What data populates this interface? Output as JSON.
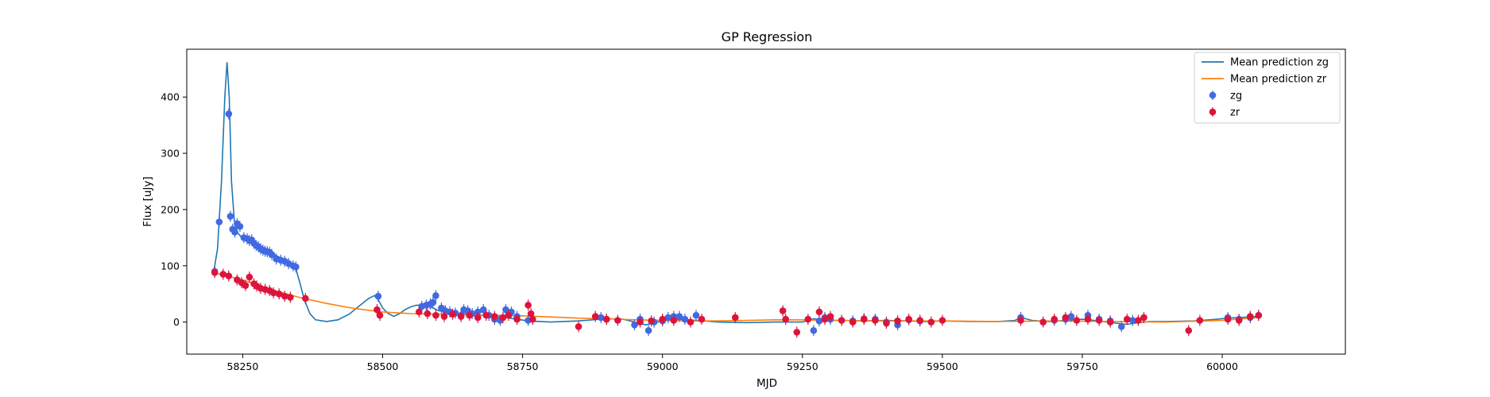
{
  "colors": {
    "mean_zg": "#1f77b4",
    "mean_zr": "#ff7f0e",
    "zg_points": "#4169e1",
    "zr_points": "#dc143c"
  },
  "chart_data": {
    "type": "scatter",
    "title": "GP Regression",
    "xlabel": "MJD",
    "ylabel": "Flux [uJy]",
    "xlim": [
      58150,
      60220
    ],
    "ylim": [
      -57,
      485
    ],
    "xticks": [
      58250,
      58500,
      58750,
      59000,
      59250,
      59500,
      59750,
      60000
    ],
    "yticks": [
      0,
      100,
      200,
      300,
      400
    ],
    "grid": false,
    "legend_position": "top-right",
    "legend": [
      "Mean prediction zg",
      "Mean prediction zr",
      "zg",
      "zr"
    ],
    "series": [
      {
        "name": "Mean prediction zg",
        "kind": "line",
        "x": [
          58198,
          58205,
          58212,
          58218,
          58222,
          58226,
          58230,
          58235,
          58240,
          58250,
          58270,
          58290,
          58310,
          58330,
          58345,
          58352,
          58360,
          58370,
          58380,
          58400,
          58420,
          58440,
          58460,
          58475,
          58485,
          58492,
          58500,
          58510,
          58520,
          58530,
          58540,
          58550,
          58560,
          58570,
          58580,
          58590,
          58600,
          58620,
          58650,
          58680,
          58700,
          58720,
          58740,
          58760,
          58800,
          58850,
          58900,
          58930,
          58950,
          58970,
          59000,
          59030,
          59060,
          59100,
          59150,
          59200,
          59250,
          59270,
          59290,
          59320,
          59360,
          59400,
          59440,
          59470,
          59500,
          59550,
          59600,
          59630,
          59640,
          59660,
          59690,
          59720,
          59750,
          59780,
          59810,
          59830,
          59850,
          59870,
          59900,
          59950,
          59990,
          60010,
          60030,
          60050,
          60065
        ],
        "y": [
          88,
          130,
          250,
          400,
          462,
          400,
          250,
          180,
          160,
          148,
          138,
          128,
          118,
          108,
          95,
          70,
          40,
          15,
          4,
          1,
          4,
          14,
          30,
          42,
          47,
          40,
          25,
          15,
          10,
          15,
          22,
          27,
          30,
          30,
          28,
          25,
          20,
          17,
          14,
          12,
          10,
          8,
          5,
          2,
          0,
          2,
          6,
          5,
          0,
          -5,
          2,
          5,
          3,
          0,
          -1,
          0,
          0,
          6,
          3,
          3,
          2,
          3,
          2,
          1,
          2,
          1,
          1,
          3,
          8,
          3,
          1,
          3,
          5,
          2,
          -2,
          -4,
          -1,
          1,
          1,
          2,
          5,
          7,
          8,
          9,
          10
        ]
      },
      {
        "name": "Mean prediction zr",
        "kind": "line",
        "x": [
          58198,
          58250,
          58300,
          58350,
          58400,
          58450,
          58500,
          58550,
          58600,
          58650,
          58700,
          58750,
          58800,
          58850,
          58900,
          58950,
          59000,
          59050,
          59100,
          59150,
          59200,
          59250,
          59300,
          59400,
          59500,
          59600,
          59700,
          59800,
          59900,
          60000,
          60065
        ],
        "y": [
          88,
          75,
          58,
          44,
          33,
          24,
          18,
          15,
          14,
          13,
          12,
          11,
          9,
          7,
          6,
          4,
          3,
          2,
          2,
          3,
          4,
          4,
          3,
          2,
          2,
          1,
          2,
          1,
          0,
          3,
          8
        ]
      },
      {
        "name": "zg",
        "kind": "points",
        "x": [
          58200,
          58208,
          58225,
          58228,
          58232,
          58236,
          58240,
          58245,
          58252,
          58258,
          58262,
          58266,
          58270,
          58274,
          58278,
          58282,
          58286,
          58290,
          58294,
          58298,
          58302,
          58310,
          58318,
          58325,
          58332,
          58340,
          58345,
          58492,
          58570,
          58578,
          58585,
          58590,
          58595,
          58605,
          58612,
          58620,
          58630,
          58640,
          58645,
          58652,
          58660,
          58670,
          58680,
          58690,
          58700,
          58710,
          58720,
          58730,
          58740,
          58760,
          58890,
          58900,
          58950,
          58960,
          58975,
          58985,
          59000,
          59010,
          59020,
          59030,
          59040,
          59060,
          59270,
          59280,
          59290,
          59300,
          59320,
          59340,
          59360,
          59380,
          59400,
          59420,
          59440,
          59460,
          59640,
          59700,
          59720,
          59730,
          59760,
          59780,
          59800,
          59820,
          59840,
          60010,
          60030,
          60050,
          60065
        ],
        "y": [
          90,
          178,
          370,
          188,
          165,
          160,
          175,
          170,
          150,
          148,
          145,
          146,
          140,
          136,
          134,
          130,
          128,
          126,
          125,
          124,
          120,
          112,
          110,
          108,
          104,
          100,
          98,
          46,
          28,
          30,
          32,
          35,
          47,
          25,
          20,
          18,
          16,
          12,
          22,
          20,
          15,
          18,
          22,
          12,
          5,
          3,
          22,
          18,
          10,
          3,
          8,
          5,
          -5,
          5,
          -15,
          0,
          2,
          8,
          10,
          10,
          5,
          12,
          -15,
          2,
          8,
          5,
          3,
          2,
          6,
          5,
          0,
          -5,
          4,
          2,
          8,
          3,
          5,
          10,
          12,
          5,
          2,
          -8,
          3,
          8,
          5,
          8,
          12
        ]
      },
      {
        "name": "zr",
        "kind": "points",
        "x": [
          58200,
          58215,
          58225,
          58240,
          58248,
          58255,
          58262,
          58270,
          58275,
          58282,
          58290,
          58298,
          58305,
          58315,
          58325,
          58335,
          58362,
          58490,
          58495,
          58565,
          58580,
          58595,
          58610,
          58625,
          58640,
          58655,
          58670,
          58685,
          58700,
          58715,
          58725,
          58740,
          58760,
          58765,
          58768,
          58850,
          58880,
          58900,
          58920,
          58960,
          58980,
          59000,
          59020,
          59050,
          59070,
          59130,
          59215,
          59220,
          59240,
          59260,
          59280,
          59290,
          59300,
          59320,
          59340,
          59360,
          59380,
          59400,
          59420,
          59440,
          59460,
          59480,
          59500,
          59640,
          59680,
          59700,
          59720,
          59740,
          59760,
          59780,
          59800,
          59830,
          59850,
          59860,
          59940,
          59960,
          60010,
          60030,
          60050,
          60065
        ],
        "y": [
          88,
          85,
          82,
          75,
          70,
          65,
          80,
          68,
          64,
          60,
          58,
          56,
          52,
          50,
          46,
          44,
          42,
          22,
          12,
          18,
          15,
          12,
          10,
          14,
          10,
          12,
          8,
          12,
          10,
          8,
          12,
          5,
          30,
          15,
          5,
          -8,
          10,
          5,
          3,
          0,
          2,
          5,
          3,
          0,
          5,
          8,
          20,
          5,
          -18,
          5,
          18,
          5,
          10,
          3,
          0,
          5,
          3,
          -2,
          2,
          5,
          3,
          0,
          3,
          3,
          0,
          5,
          8,
          3,
          5,
          3,
          0,
          5,
          3,
          8,
          -15,
          3,
          5,
          3,
          10,
          12
        ]
      }
    ]
  }
}
